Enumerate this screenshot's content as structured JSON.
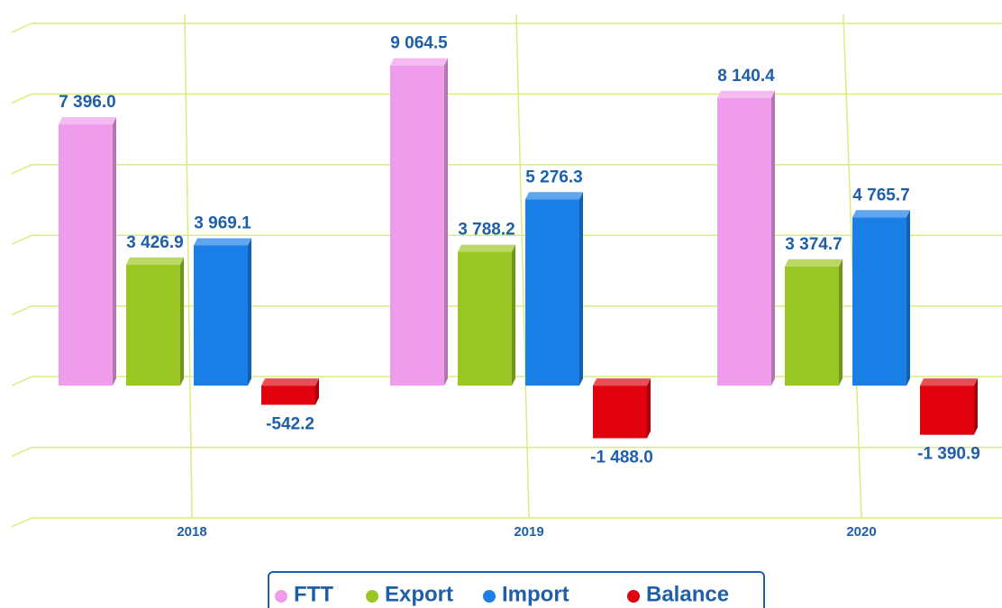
{
  "chart_data": {
    "type": "bar",
    "categories": [
      "2018",
      "2019",
      "2020"
    ],
    "series": [
      {
        "name": "FTT",
        "color": "#f09cec",
        "values": [
          7396.0,
          9064.5,
          8140.4
        ],
        "value_labels": [
          "7 396.0",
          "9 064.5",
          "8 140.4"
        ]
      },
      {
        "name": "Export",
        "color": "#9bc724",
        "values": [
          3426.9,
          3788.2,
          3374.7
        ],
        "value_labels": [
          "3 426.9",
          "3 788.2",
          "3 374.7"
        ]
      },
      {
        "name": "Import",
        "color": "#1a80e8",
        "values": [
          3969.1,
          5276.3,
          4765.7
        ],
        "value_labels": [
          "3 969.1",
          "5 276.3",
          "4 765.7"
        ]
      },
      {
        "name": "Balance",
        "color": "#e0000e",
        "values": [
          -542.2,
          -1488.0,
          -1390.9
        ],
        "value_labels": [
          "-542.2",
          "-1 488.0",
          "-1 390.9"
        ]
      }
    ],
    "ylim": [
      -4000,
      10000
    ],
    "yticks": [
      -4000,
      -2000,
      0,
      2000,
      4000,
      6000,
      8000,
      10000
    ],
    "grid": true,
    "legend": "bottom"
  }
}
